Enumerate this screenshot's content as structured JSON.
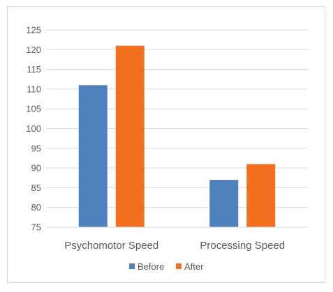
{
  "chart_data": {
    "type": "bar",
    "categories": [
      "Psychomotor Speed",
      "Processing Speed"
    ],
    "series": [
      {
        "name": "Before",
        "values": [
          111,
          87
        ],
        "color": "#4f81bd"
      },
      {
        "name": "After",
        "values": [
          121,
          91
        ],
        "color": "#f37021"
      }
    ],
    "ylim": [
      75,
      125
    ],
    "yticks": [
      75,
      80,
      85,
      90,
      95,
      100,
      105,
      110,
      115,
      120,
      125
    ],
    "grid": true,
    "legend_position": "bottom",
    "title": "",
    "xlabel": "",
    "ylabel": ""
  }
}
